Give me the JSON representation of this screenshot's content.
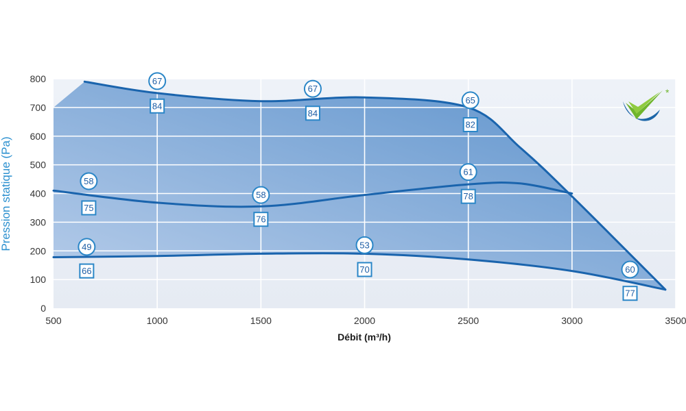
{
  "chart_data": {
    "type": "area",
    "xlabel": "Débit (m³/h)",
    "ylabel": "Pression statique (Pa)",
    "xlim": [
      500,
      3500
    ],
    "ylim": [
      0,
      800
    ],
    "x_ticks": [
      500,
      1000,
      1500,
      2000,
      2500,
      3000,
      3500
    ],
    "y_ticks": [
      0,
      100,
      200,
      300,
      400,
      500,
      600,
      700,
      800
    ],
    "grid": true,
    "envelope": {
      "x": [
        500,
        650,
        1000,
        1500,
        2000,
        2500,
        2800,
        3000,
        3200,
        3450,
        3000,
        2500,
        2000,
        1500,
        1000,
        500
      ],
      "y": [
        700,
        790,
        750,
        722,
        735,
        700,
        530,
        390,
        200,
        65,
        130,
        170,
        190,
        192,
        182,
        178
      ]
    },
    "series": [
      {
        "x": [
          650,
          1000,
          1500,
          2000,
          2500,
          2750,
          3000,
          3450
        ],
        "y": [
          790,
          750,
          722,
          735,
          700,
          560,
          390,
          65
        ]
      },
      {
        "x": [
          500,
          1000,
          1500,
          2000,
          2500,
          2750,
          3000
        ],
        "y": [
          410,
          368,
          355,
          395,
          432,
          435,
          400
        ]
      },
      {
        "x": [
          500,
          1000,
          1500,
          2000,
          2500,
          3000,
          3450
        ],
        "y": [
          178,
          182,
          190,
          190,
          170,
          130,
          65
        ]
      }
    ],
    "annotations": [
      {
        "circle": "58",
        "square": "75",
        "x": 670,
        "cy": 443,
        "sy": 350
      },
      {
        "circle": "49",
        "square": "66",
        "x": 660,
        "cy": 214,
        "sy": 130
      },
      {
        "circle": "67",
        "square": "84",
        "x": 1000,
        "cy": 792,
        "sy": 705
      },
      {
        "circle": "58",
        "square": "76",
        "x": 1500,
        "cy": 395,
        "sy": 310
      },
      {
        "circle": "67",
        "square": "84",
        "x": 1750,
        "cy": 765,
        "sy": 680
      },
      {
        "circle": "53",
        "square": "70",
        "x": 2000,
        "cy": 220,
        "sy": 135
      },
      {
        "circle": "65",
        "square": "82",
        "x": 2510,
        "cy": 725,
        "sy": 640
      },
      {
        "circle": "61",
        "square": "78",
        "x": 2500,
        "cy": 475,
        "sy": 390
      },
      {
        "circle": "60",
        "square": "77",
        "x": 3280,
        "cy": 135,
        "sy": 52
      }
    ],
    "colors": {
      "envelope_light": "#b3c9e8",
      "envelope_dark": "#5a90ca",
      "curve": "#1a64ad",
      "marker": "#2a86c7",
      "grid": "#ffffff",
      "axis_text": "#2a8fcf",
      "logo_green": "#6fb52c",
      "logo_blue": "#1c66a8"
    }
  }
}
